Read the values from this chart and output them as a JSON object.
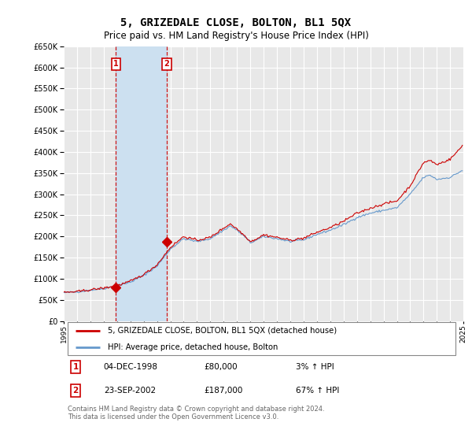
{
  "title": "5, GRIZEDALE CLOSE, BOLTON, BL1 5QX",
  "subtitle": "Price paid vs. HM Land Registry's House Price Index (HPI)",
  "title_fontsize": 10,
  "subtitle_fontsize": 8.5,
  "ylim": [
    0,
    650000
  ],
  "yticks": [
    0,
    50000,
    100000,
    150000,
    200000,
    250000,
    300000,
    350000,
    400000,
    450000,
    500000,
    550000,
    600000,
    650000
  ],
  "background_color": "#ffffff",
  "plot_bg_color": "#e8e8e8",
  "grid_color": "#ffffff",
  "sale1_date_num": 1998.92,
  "sale2_date_num": 2002.73,
  "sale1_price": 80000,
  "sale2_price": 187000,
  "sale1_label": "1",
  "sale2_label": "2",
  "sale1_date_str": "04-DEC-1998",
  "sale2_date_str": "23-SEP-2002",
  "sale1_pct": "3%",
  "sale2_pct": "67%",
  "property_line_color": "#cc0000",
  "hpi_line_color": "#6699cc",
  "shade_color": "#cce0f0",
  "marker_color": "#cc0000",
  "box_color": "#cc0000",
  "legend_property_label": "5, GRIZEDALE CLOSE, BOLTON, BL1 5QX (detached house)",
  "legend_hpi_label": "HPI: Average price, detached house, Bolton",
  "footer_text": "Contains HM Land Registry data © Crown copyright and database right 2024.\nThis data is licensed under the Open Government Licence v3.0.",
  "xstart": 1995,
  "xend": 2025
}
